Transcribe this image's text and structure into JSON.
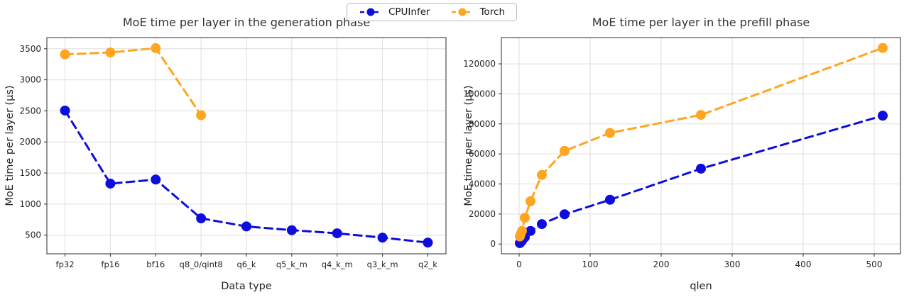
{
  "legend": {
    "items": [
      {
        "label": "CPUInfer",
        "color": "#0d0ddd"
      },
      {
        "label": "Torch",
        "color": "#ffa51f"
      }
    ]
  },
  "chart_data": [
    {
      "type": "line",
      "title": "MoE time per layer in the generation phase",
      "xlabel": "Data type",
      "ylabel": "MoE time per layer (µs)",
      "categories": [
        "fp32",
        "fp16",
        "bf16",
        "q8_0/qint8",
        "q6_k",
        "q5_k_m",
        "q4_k_m",
        "q3_k_m",
        "q2_k"
      ],
      "series": [
        {
          "name": "CPUInfer",
          "color": "#0d0ddd",
          "values": [
            2505,
            1330,
            1395,
            770,
            640,
            580,
            530,
            460,
            380
          ]
        },
        {
          "name": "Torch",
          "color": "#ffa51f",
          "values": [
            3410,
            3440,
            3510,
            2430,
            null,
            null,
            null,
            null,
            null
          ]
        }
      ],
      "yticks": [
        500,
        1000,
        1500,
        2000,
        2500,
        3000,
        3500
      ],
      "ylim": [
        200,
        3680
      ],
      "grid": true,
      "line_style": "dashed",
      "legend_position": "top-center-outside"
    },
    {
      "type": "line",
      "title": "MoE time per layer in the prefill phase",
      "xlabel": "qlen",
      "ylabel": "MoE time per layer (µs)",
      "x": [
        1,
        2,
        4,
        8,
        16,
        32,
        64,
        128,
        256,
        512
      ],
      "series": [
        {
          "name": "CPUInfer",
          "color": "#0d0ddd",
          "values": [
            600,
            1100,
            2200,
            4500,
            8700,
            13300,
            19800,
            29500,
            50200,
            85500
          ]
        },
        {
          "name": "Torch",
          "color": "#ffa51f",
          "values": [
            5000,
            6400,
            8700,
            17500,
            28500,
            46000,
            62000,
            74000,
            86000,
            130600
          ]
        }
      ],
      "xticks": [
        0,
        100,
        200,
        300,
        400,
        500
      ],
      "yticks": [
        0,
        20000,
        40000,
        60000,
        80000,
        100000,
        120000
      ],
      "xlim": [
        -25,
        537
      ],
      "ylim": [
        -6500,
        137500
      ],
      "grid": true,
      "line_style": "dashed",
      "legend_position": "top-center-outside"
    }
  ]
}
